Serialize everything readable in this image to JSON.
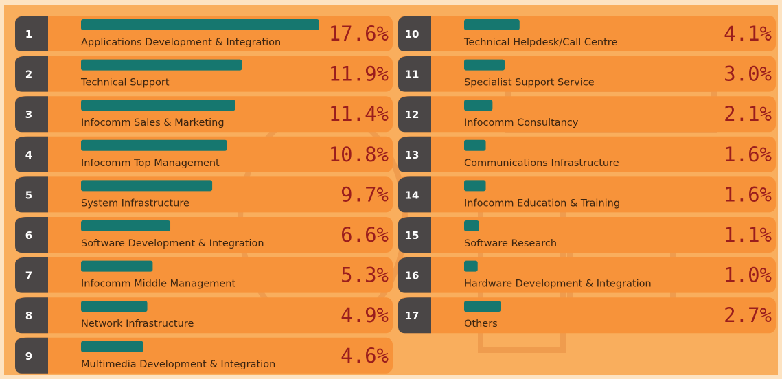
{
  "chart_data": {
    "type": "bar",
    "color": "#16776f",
    "ranks": [
      1,
      2,
      3,
      4,
      5,
      6,
      7,
      8,
      9,
      10,
      11,
      12,
      13,
      14,
      15,
      16,
      17
    ],
    "categories": [
      "Applications Development & Integration",
      "Technical Support",
      "Infocomm Sales & Marketing",
      "Infocomm Top Management",
      "System Infrastructure",
      "Software Development & Integration",
      "Infocomm Middle Management",
      "Network Infrastructure",
      "Multimedia Development & Integration",
      "Technical Helpdesk/Call Centre",
      "Specialist Support Service",
      "Infocomm Consultancy",
      "Communications Infrastructure",
      "Infocomm Education & Training",
      "Software Research",
      "Hardware Development & Integration",
      "Others"
    ],
    "values": [
      17.6,
      11.9,
      11.4,
      10.8,
      9.7,
      6.6,
      5.3,
      4.9,
      4.6,
      4.1,
      3.0,
      2.1,
      1.6,
      1.6,
      1.1,
      1.0,
      2.7
    ],
    "value_labels": [
      "17.6%",
      "11.9%",
      "11.4%",
      "10.8%",
      "9.7%",
      "6.6%",
      "5.3%",
      "4.9%",
      "4.6%",
      "4.1%",
      "3.0%",
      "2.1%",
      "1.6%",
      "1.6%",
      "1.1%",
      "1.0%",
      "2.7%"
    ]
  }
}
